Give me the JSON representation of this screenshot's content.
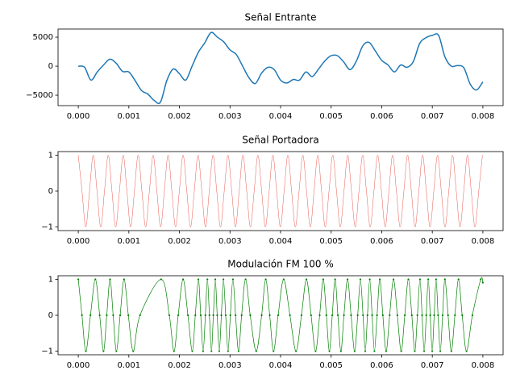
{
  "chart_data": [
    {
      "type": "line",
      "title": "Señal Entrante",
      "color": "#1f77b4",
      "x": [
        0,
        0.000125,
        0.00025,
        0.000375,
        0.0005,
        0.000625,
        0.00075,
        0.000875,
        0.001,
        0.001125,
        0.00125,
        0.001375,
        0.0015,
        0.001625,
        0.00175,
        0.001875,
        0.002,
        0.002125,
        0.00225,
        0.002375,
        0.0025,
        0.002625,
        0.00275,
        0.002875,
        0.003,
        0.003125,
        0.00325,
        0.003375,
        0.0035,
        0.003625,
        0.00375,
        0.003875,
        0.004,
        0.004125,
        0.00425,
        0.004375,
        0.0045,
        0.004625,
        0.00475,
        0.004875,
        0.005,
        0.005125,
        0.00525,
        0.005375,
        0.0055,
        0.005625,
        0.00575,
        0.005875,
        0.006,
        0.006125,
        0.00625,
        0.006375,
        0.0065,
        0.006625,
        0.00675,
        0.006875,
        0.007,
        0.007125,
        0.00725,
        0.007375,
        0.0075,
        0.007625,
        0.00775,
        0.007875,
        0.008
      ],
      "values": [
        0,
        -200,
        -2400,
        -1000,
        200,
        1200,
        500,
        -900,
        -1000,
        -2500,
        -4200,
        -4800,
        -5900,
        -6200,
        -2500,
        -500,
        -1300,
        -2400,
        0,
        2400,
        4000,
        5800,
        5000,
        4200,
        2800,
        2000,
        0,
        -2000,
        -3000,
        -1200,
        -200,
        -600,
        -2400,
        -2900,
        -2300,
        -2400,
        -1000,
        -1800,
        -500,
        900,
        1800,
        1800,
        700,
        -600,
        900,
        3500,
        4100,
        2600,
        1000,
        200,
        -1000,
        200,
        -200,
        800,
        3900,
        4900,
        5300,
        5300,
        1600,
        0,
        100,
        -300,
        -3100,
        -4100,
        -2700
      ],
      "xlim": [
        -0.0004,
        0.0084
      ],
      "ylim": [
        -6800,
        6400
      ],
      "xticks": [
        {
          "value": 0,
          "label": "0.000"
        },
        {
          "value": 0.001,
          "label": "0.001"
        },
        {
          "value": 0.002,
          "label": "0.002"
        },
        {
          "value": 0.003,
          "label": "0.003"
        },
        {
          "value": 0.004,
          "label": "0.004"
        },
        {
          "value": 0.005,
          "label": "0.005"
        },
        {
          "value": 0.006,
          "label": "0.006"
        },
        {
          "value": 0.007,
          "label": "0.007"
        },
        {
          "value": 0.008,
          "label": "0.008"
        }
      ],
      "yticks": [
        {
          "value": -5000,
          "label": "−5000"
        },
        0,
        5000
      ]
    },
    {
      "type": "line",
      "title": "Señal Portadora",
      "color": "#e8554e",
      "x": [
        0,
        7.4e-05,
        0.000148,
        0.000222,
        0.000296,
        0.00037,
        0.000444,
        0.000518,
        0.000592,
        0.000666,
        0.00074,
        0.000814,
        0.000888,
        0.000962,
        0.001036,
        0.00111,
        0.001184,
        0.001258,
        0.001332,
        0.001406,
        0.00148,
        0.001554,
        0.001628,
        0.001702,
        0.001776,
        0.00185,
        0.001924,
        0.001998,
        0.002072,
        0.002146,
        0.00222,
        0.002294,
        0.002368,
        0.002442,
        0.002516,
        0.00259,
        0.002664,
        0.002738,
        0.002812,
        0.002886,
        0.00296,
        0.003034,
        0.003108,
        0.003182,
        0.003256,
        0.00333,
        0.003404,
        0.003478,
        0.003552,
        0.003626,
        0.0037,
        0.003774,
        0.003848,
        0.003922,
        0.003996,
        0.00407,
        0.004144,
        0.004218,
        0.004292,
        0.004366,
        0.00444,
        0.004514,
        0.004588,
        0.004662,
        0.004736,
        0.00481,
        0.004884,
        0.004958,
        0.005032,
        0.005106,
        0.00518,
        0.005254,
        0.005328,
        0.005402,
        0.005476,
        0.00555,
        0.005624,
        0.005698,
        0.005772,
        0.005846,
        0.00592,
        0.005994,
        0.006068,
        0.006142,
        0.006216,
        0.00629,
        0.006364,
        0.006438,
        0.006512,
        0.006586,
        0.00666,
        0.006734,
        0.006808,
        0.006882,
        0.006956,
        0.00703,
        0.007104,
        0.007178,
        0.007252,
        0.007326,
        0.0074,
        0.007474,
        0.007548,
        0.007622,
        0.007696,
        0.00777,
        0.007844,
        0.007918,
        0.007992
      ],
      "values": [
        1,
        0,
        -1,
        0,
        1,
        0,
        -1,
        0,
        1,
        0,
        -1,
        0,
        1,
        0,
        -1,
        0,
        1,
        0,
        -1,
        0,
        1,
        0,
        -1,
        0,
        1,
        0,
        -1,
        0,
        1,
        0,
        -1,
        0,
        1,
        0,
        -1,
        0,
        1,
        0,
        -1,
        0,
        1,
        0,
        -1,
        0,
        1,
        0,
        -1,
        0,
        1,
        0,
        -1,
        0,
        1,
        0,
        -1,
        0,
        1,
        0,
        -1,
        0,
        1,
        0,
        -1,
        0,
        1,
        0,
        -1,
        0,
        1,
        0,
        -1,
        0,
        1,
        0,
        -1,
        0,
        1,
        0,
        -1,
        0,
        1,
        0,
        -1,
        0,
        1,
        0,
        -1,
        0,
        1,
        0,
        -1,
        0,
        1,
        0,
        -1,
        0,
        1,
        0,
        -1,
        0,
        1,
        0,
        -1,
        0,
        1,
        0,
        -1,
        0,
        1
      ],
      "xlim": [
        -0.0004,
        0.0084
      ],
      "ylim": [
        -1.1,
        1.1
      ],
      "xticks": [
        {
          "value": 0,
          "label": "0.000"
        },
        {
          "value": 0.001,
          "label": "0.001"
        },
        {
          "value": 0.002,
          "label": "0.002"
        },
        {
          "value": 0.003,
          "label": "0.003"
        },
        {
          "value": 0.004,
          "label": "0.004"
        },
        {
          "value": 0.005,
          "label": "0.005"
        },
        {
          "value": 0.006,
          "label": "0.006"
        },
        {
          "value": 0.007,
          "label": "0.007"
        },
        {
          "value": 0.008,
          "label": "0.008"
        }
      ],
      "yticks": [
        {
          "value": -1,
          "label": "−1"
        },
        0,
        1
      ]
    },
    {
      "type": "line",
      "title": "Modulación FM 100 %",
      "color": "#008000",
      "marker": true,
      "x": [
        0,
        7.3e-05,
        0.00015,
        0.000241,
        0.000338,
        0.000423,
        0.000499,
        0.000563,
        0.000628,
        0.00069,
        0.000754,
        0.000828,
        0.000905,
        0.00099,
        0.001087,
        0.001221,
        0.001638,
        0.0018,
        0.001892,
        0.001976,
        0.002073,
        0.002168,
        0.002254,
        0.002314,
        0.002374,
        0.002421,
        0.002469,
        0.002513,
        0.002553,
        0.002593,
        0.002633,
        0.002671,
        0.002709,
        0.002747,
        0.002788,
        0.002829,
        0.00287,
        0.002915,
        0.002961,
        0.003007,
        0.003058,
        0.00311,
        0.003169,
        0.00323,
        0.003308,
        0.0034,
        0.003518,
        0.003626,
        0.003706,
        0.003785,
        0.003861,
        0.003952,
        0.004061,
        0.004185,
        0.004305,
        0.004413,
        0.004511,
        0.004603,
        0.004692,
        0.004773,
        0.004843,
        0.004906,
        0.004965,
        0.005022,
        0.005078,
        0.005133,
        0.005193,
        0.005253,
        0.005324,
        0.005394,
        0.005464,
        0.005525,
        0.005578,
        0.00563,
        0.005674,
        0.005718,
        0.005763,
        0.00581,
        0.005856,
        0.005908,
        0.005963,
        0.006022,
        0.006087,
        0.006157,
        0.006233,
        0.006309,
        0.006385,
        0.006456,
        0.006527,
        0.006595,
        0.006654,
        0.006706,
        0.006756,
        0.006798,
        0.006839,
        0.006881,
        0.00692,
        0.006959,
        0.006998,
        0.007037,
        0.007075,
        0.007114,
        0.007158,
        0.007204,
        0.007249,
        0.007312,
        0.007376,
        0.007447,
        0.007518,
        0.007591,
        0.007677,
        0.007793,
        0.007958,
        0.008
      ],
      "values": [
        1,
        0,
        -1,
        0,
        1,
        0,
        -1,
        0,
        1,
        0,
        -1,
        0,
        1,
        0,
        -1,
        0,
        1,
        0,
        -1,
        0,
        1,
        0,
        -1,
        0,
        1,
        0,
        -1,
        0,
        1,
        0,
        -1,
        0,
        1,
        0,
        -1,
        0,
        1,
        0,
        -1,
        0,
        1,
        0,
        -1,
        0,
        1,
        0,
        -1,
        0,
        1,
        0,
        -1,
        0,
        1,
        0,
        -1,
        0,
        1,
        0,
        -1,
        0,
        1,
        0,
        -1,
        0,
        1,
        0,
        -1,
        0,
        1,
        0,
        -1,
        0,
        1,
        0,
        -1,
        0,
        1,
        0,
        -1,
        0,
        1,
        0,
        -1,
        0,
        1,
        0,
        -1,
        0,
        1,
        0,
        -1,
        0,
        1,
        0,
        -1,
        0,
        1,
        0,
        -1,
        0,
        1,
        0,
        -1,
        0,
        1,
        0,
        -1,
        0,
        1,
        0,
        -1,
        0,
        1,
        0.91
      ],
      "xlim": [
        -0.0004,
        0.0084
      ],
      "ylim": [
        -1.1,
        1.1
      ],
      "xticks": [
        {
          "value": 0,
          "label": "0.000"
        },
        {
          "value": 0.001,
          "label": "0.001"
        },
        {
          "value": 0.002,
          "label": "0.002"
        },
        {
          "value": 0.003,
          "label": "0.003"
        },
        {
          "value": 0.004,
          "label": "0.004"
        },
        {
          "value": 0.005,
          "label": "0.005"
        },
        {
          "value": 0.006,
          "label": "0.006"
        },
        {
          "value": 0.007,
          "label": "0.007"
        },
        {
          "value": 0.008,
          "label": "0.008"
        }
      ],
      "yticks": [
        {
          "value": -1,
          "label": "−1"
        },
        0,
        1
      ]
    }
  ]
}
